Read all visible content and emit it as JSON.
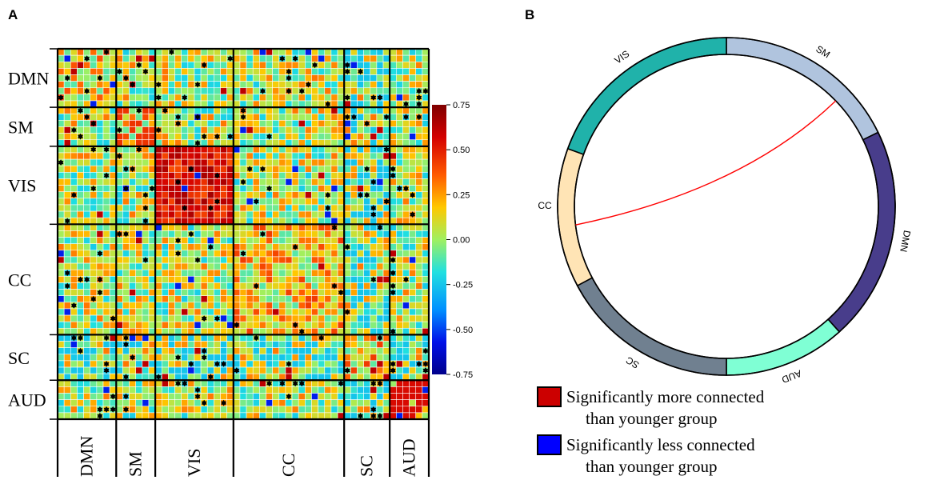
{
  "chart_data": [
    {
      "type": "heatmap",
      "panel_label": "A",
      "groups": [
        {
          "name": "DMN",
          "size": 9
        },
        {
          "name": "SM",
          "size": 6
        },
        {
          "name": "VIS",
          "size": 12
        },
        {
          "name": "CC",
          "size": 17
        },
        {
          "name": "SC",
          "size": 7
        },
        {
          "name": "AUD",
          "size": 6
        }
      ],
      "colorbar": {
        "min": -0.75,
        "max": 0.75,
        "ticks": [
          "0.75",
          "0.50",
          "0.25",
          "0.00",
          "-0.25",
          "-0.50",
          "-0.75"
        ]
      },
      "significant_marker": "*"
    },
    {
      "type": "chord",
      "panel_label": "B",
      "segments": [
        {
          "name": "SM",
          "color": "#B0C4DE"
        },
        {
          "name": "DMN",
          "color": "#483D8B"
        },
        {
          "name": "AUD",
          "color": "#7FFFD4"
        },
        {
          "name": "SC",
          "color": "#708090"
        },
        {
          "name": "CC",
          "color": "#FFE4B5"
        },
        {
          "name": "VIS",
          "color": "#20B2AA"
        }
      ],
      "links": [
        {
          "from": "SM",
          "to": "CC",
          "direction": "more",
          "color": "#ff0000"
        }
      ],
      "legend": [
        {
          "color": "#cc0000",
          "line1": "Significantly more connected",
          "line2": "than younger group"
        },
        {
          "color": "#0000ff",
          "line1": "Significantly less connected",
          "line2": "than younger group"
        }
      ]
    }
  ]
}
